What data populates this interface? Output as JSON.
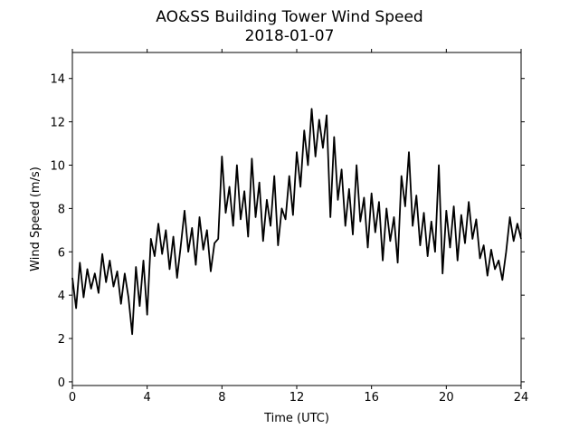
{
  "chart_data": {
    "type": "line",
    "title": "AO&SS Building Tower Wind Speed",
    "subtitle": "2018-01-07",
    "x_label": "Time (UTC)",
    "y_label": "Wind Speed (m/s)",
    "color": "#000000",
    "xlim": [
      0,
      24
    ],
    "xticks": [
      0,
      4,
      8,
      12,
      16,
      20,
      24
    ],
    "ylim": [
      -0.17,
      15.2
    ],
    "yticks": [
      0,
      2,
      4,
      6,
      8,
      10,
      12,
      14
    ],
    "x": [
      0,
      0.2,
      0.4,
      0.6,
      0.8,
      1,
      1.2,
      1.4,
      1.6,
      1.8,
      2,
      2.2,
      2.4,
      2.6,
      2.8,
      3,
      3.2,
      3.4,
      3.6,
      3.8,
      4,
      4.2,
      4.4,
      4.6,
      4.8,
      5,
      5.2,
      5.4,
      5.6,
      5.8,
      6,
      6.2,
      6.4,
      6.6,
      6.8,
      7,
      7.2,
      7.4,
      7.6,
      7.8,
      8,
      8.2,
      8.4,
      8.6,
      8.8,
      9,
      9.2,
      9.4,
      9.6,
      9.8,
      10,
      10.2,
      10.4,
      10.6,
      10.8,
      11,
      11.2,
      11.4,
      11.6,
      11.8,
      12,
      12.2,
      12.4,
      12.6,
      12.8,
      13,
      13.2,
      13.4,
      13.6,
      13.8,
      14,
      14.2,
      14.4,
      14.6,
      14.8,
      15,
      15.2,
      15.4,
      15.6,
      15.8,
      16,
      16.2,
      16.4,
      16.6,
      16.8,
      17,
      17.2,
      17.4,
      17.6,
      17.8,
      18,
      18.2,
      18.4,
      18.6,
      18.8,
      19,
      19.2,
      19.4,
      19.6,
      19.8,
      20,
      20.2,
      20.4,
      20.6,
      20.8,
      21,
      21.2,
      21.4,
      21.6,
      21.8,
      22,
      22.2,
      22.4,
      22.6,
      22.8,
      23,
      23.2,
      23.4,
      23.6,
      23.8,
      24
    ],
    "values": [
      4.8,
      3.4,
      5.5,
      3.9,
      5.2,
      4.3,
      5.0,
      4.1,
      5.9,
      4.6,
      5.6,
      4.4,
      5.1,
      3.6,
      5.0,
      3.9,
      2.2,
      5.3,
      3.5,
      5.6,
      3.1,
      6.6,
      5.8,
      7.3,
      5.9,
      7.0,
      5.2,
      6.7,
      4.8,
      6.3,
      7.9,
      6.0,
      7.1,
      5.4,
      7.6,
      6.1,
      7.0,
      5.1,
      6.4,
      6.6,
      10.4,
      7.8,
      9.0,
      7.2,
      10.0,
      7.5,
      8.8,
      6.7,
      10.3,
      7.6,
      9.2,
      6.5,
      8.4,
      7.2,
      9.5,
      6.3,
      8.0,
      7.5,
      9.5,
      7.7,
      10.6,
      9.0,
      11.6,
      10.0,
      12.6,
      10.4,
      12.1,
      10.8,
      12.3,
      7.6,
      11.3,
      8.4,
      9.8,
      7.2,
      8.9,
      6.8,
      10.0,
      7.4,
      8.5,
      6.2,
      8.7,
      6.9,
      8.3,
      5.6,
      8.0,
      6.5,
      7.6,
      5.5,
      9.5,
      8.1,
      10.6,
      7.2,
      8.6,
      6.3,
      7.8,
      5.8,
      7.4,
      6.0,
      10.0,
      5.0,
      7.9,
      6.2,
      8.1,
      5.6,
      7.7,
      6.4,
      8.3,
      6.6,
      7.5,
      5.7,
      6.3,
      4.9,
      6.1,
      5.2,
      5.6,
      4.7,
      6.0,
      7.6,
      6.5,
      7.3,
      6.6
    ]
  }
}
